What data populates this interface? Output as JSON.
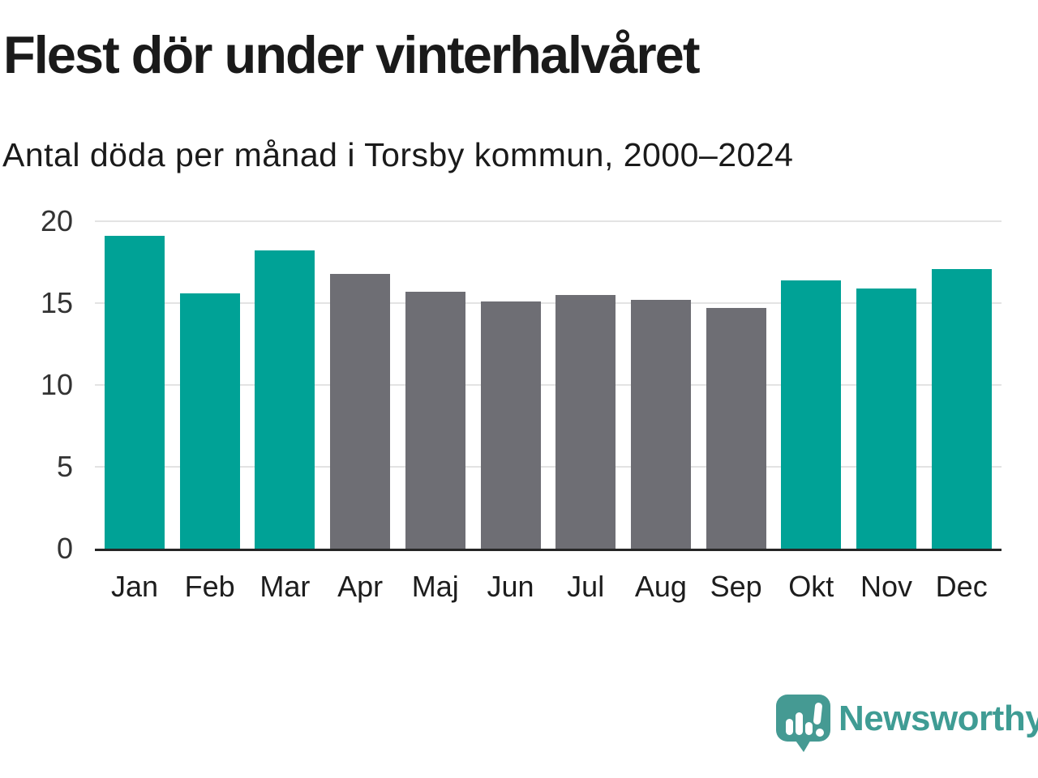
{
  "header": {
    "title": "Flest dör under vinterhalvåret",
    "subtitle": "Antal döda per månad i Torsby kommun, 2000–2024"
  },
  "chart_data": {
    "type": "bar",
    "title": "Flest dör under vinterhalvåret",
    "subtitle": "Antal döda per månad i Torsby kommun, 2000–2024",
    "categories": [
      "Jan",
      "Feb",
      "Mar",
      "Apr",
      "Maj",
      "Jun",
      "Jul",
      "Aug",
      "Sep",
      "Okt",
      "Nov",
      "Dec"
    ],
    "values": [
      19.1,
      15.6,
      18.2,
      16.8,
      15.7,
      15.1,
      15.5,
      15.2,
      14.7,
      16.4,
      15.9,
      17.1
    ],
    "seasons": [
      "winter",
      "winter",
      "winter",
      "summer",
      "summer",
      "summer",
      "summer",
      "summer",
      "summer",
      "winter",
      "winter",
      "winter"
    ],
    "colors": {
      "winter": "#00a296",
      "summer": "#6e6e74"
    },
    "xlabel": "",
    "ylabel": "",
    "ylim": [
      0,
      20
    ],
    "yticks": [
      0,
      5,
      10,
      15,
      20
    ],
    "grid": true,
    "legend": "none"
  },
  "branding": {
    "logo_text": "Newsworthy",
    "logo_text_color": "#3f9c94",
    "logo_mark_color": "#459a93"
  }
}
